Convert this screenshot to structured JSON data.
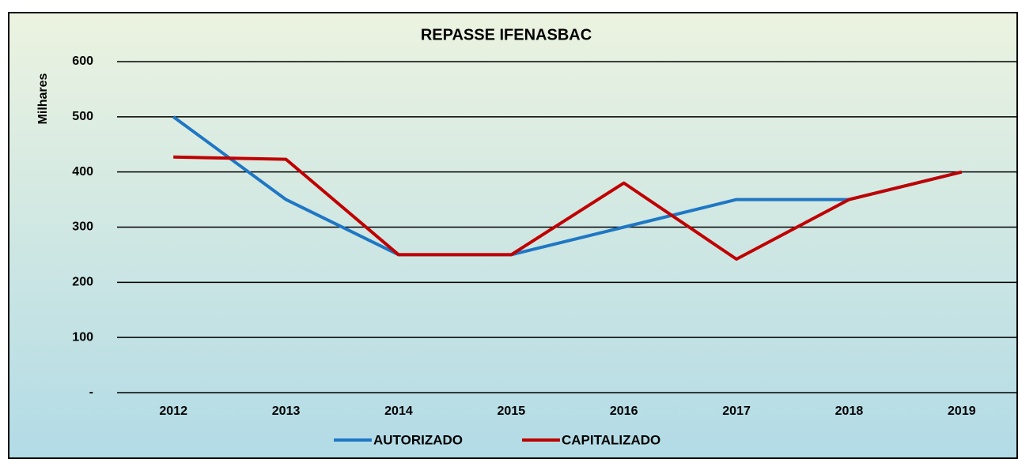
{
  "chart_data": {
    "type": "line",
    "title": "REPASSE IFENASBAC",
    "y_label": "Milhares",
    "categories": [
      "2012",
      "2013",
      "2014",
      "2015",
      "2016",
      "2017",
      "2018",
      "2019"
    ],
    "series": [
      {
        "name": "AUTORIZADO",
        "color": "#1f77c4",
        "values": [
          500,
          350,
          250,
          250,
          300,
          350,
          350,
          400
        ]
      },
      {
        "name": "CAPITALIZADO",
        "color": "#c00000",
        "values": [
          427,
          423,
          250,
          250,
          380,
          242,
          350,
          400
        ]
      }
    ],
    "ylim": [
      0,
      600
    ],
    "yticks": [
      {
        "value": 0,
        "label": "-"
      },
      100,
      200,
      300,
      400,
      500,
      600
    ],
    "grid": true
  }
}
